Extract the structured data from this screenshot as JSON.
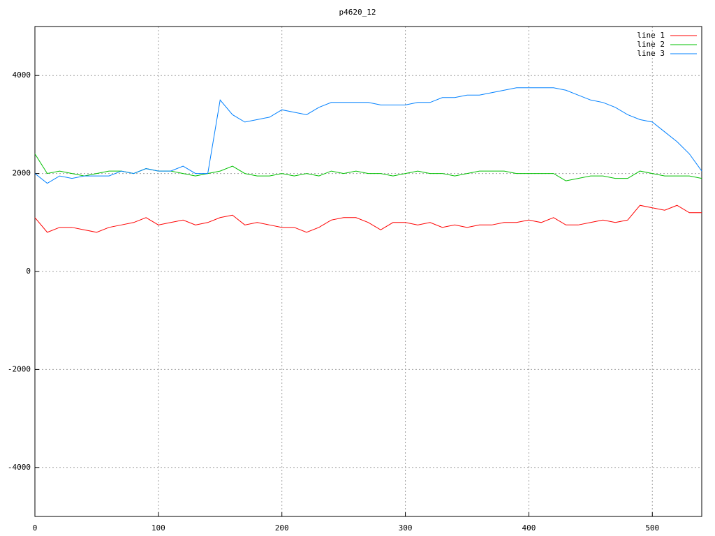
{
  "chart_data": {
    "type": "line",
    "title": "p4620_12",
    "x": [
      0,
      10,
      20,
      30,
      40,
      50,
      60,
      70,
      80,
      90,
      100,
      110,
      120,
      130,
      140,
      150,
      160,
      170,
      180,
      190,
      200,
      210,
      220,
      230,
      240,
      250,
      260,
      270,
      280,
      290,
      300,
      310,
      320,
      330,
      340,
      350,
      360,
      370,
      380,
      390,
      400,
      410,
      420,
      430,
      440,
      450,
      460,
      470,
      480,
      490,
      500,
      510,
      520,
      530,
      540
    ],
    "series": [
      {
        "name": "line 1",
        "color": "#ff0000",
        "values": [
          1100,
          800,
          900,
          900,
          850,
          800,
          900,
          950,
          1000,
          1100,
          950,
          1000,
          1050,
          950,
          1000,
          1100,
          1150,
          950,
          1000,
          950,
          900,
          900,
          800,
          900,
          1050,
          1100,
          1100,
          1000,
          850,
          1000,
          1000,
          950,
          1000,
          900,
          950,
          900,
          950,
          950,
          1000,
          1000,
          1050,
          1000,
          1100,
          950,
          950,
          1000,
          1050,
          1000,
          1050,
          1350,
          1300,
          1250,
          1350,
          1200,
          1200
        ]
      },
      {
        "name": "line 2",
        "color": "#00c000",
        "values": [
          2400,
          2000,
          2050,
          2000,
          1950,
          2000,
          2050,
          2050,
          2000,
          2100,
          2050,
          2050,
          2000,
          1950,
          2000,
          2050,
          2150,
          2000,
          1950,
          1950,
          2000,
          1950,
          2000,
          1950,
          2050,
          2000,
          2050,
          2000,
          2000,
          1950,
          2000,
          2050,
          2000,
          2000,
          1950,
          2000,
          2050,
          2050,
          2050,
          2000,
          2000,
          2000,
          2000,
          1850,
          1900,
          1950,
          1950,
          1900,
          1900,
          2050,
          2000,
          1950,
          1950,
          1950,
          1900
        ]
      },
      {
        "name": "line 3",
        "color": "#0080ff",
        "values": [
          2000,
          1800,
          1950,
          1900,
          1950,
          1950,
          1950,
          2050,
          2000,
          2100,
          2050,
          2050,
          2150,
          2000,
          2000,
          3500,
          3200,
          3050,
          3100,
          3150,
          3300,
          3250,
          3200,
          3350,
          3450,
          3450,
          3450,
          3450,
          3400,
          3400,
          3400,
          3450,
          3450,
          3550,
          3550,
          3600,
          3600,
          3650,
          3700,
          3750,
          3750,
          3750,
          3750,
          3700,
          3600,
          3500,
          3450,
          3350,
          3200,
          3100,
          3050,
          2850,
          2650,
          2400,
          2050
        ]
      }
    ],
    "xlim": [
      0,
      540
    ],
    "ylim": [
      -5000,
      5000
    ],
    "xticks": [
      0,
      100,
      200,
      300,
      400,
      500
    ],
    "yticks": [
      -4000,
      -2000,
      0,
      2000,
      4000
    ],
    "grid": true,
    "legend": "top-right"
  }
}
